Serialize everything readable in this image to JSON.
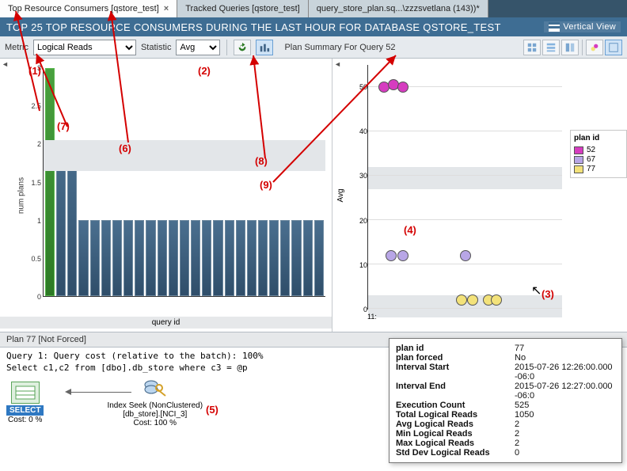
{
  "tabs": [
    {
      "label": "Top Resource Consumers [qstore_test]",
      "active": true
    },
    {
      "label": "Tracked Queries [qstore_test]",
      "active": false
    },
    {
      "label": "query_store_plan.sq...\\zzzsvetlana (143))*",
      "active": false
    }
  ],
  "title": "TOP 25 TOP RESOURCE CONSUMERS DURING THE LAST HOUR FOR DATABASE QSTORE_TEST",
  "vertical_view_label": "Vertical View",
  "toolbar": {
    "metric_label": "Metric",
    "metric_value": "Logical Reads",
    "statistic_label": "Statistic",
    "statistic_value": "Avg",
    "plan_summary_label": "Plan Summary For Query 52"
  },
  "barchart": {
    "ylabel": "num plans",
    "xlabel": "query id",
    "ylim": [
      0,
      3
    ],
    "yticks": [
      0,
      0.5,
      1,
      1.5,
      2,
      2.5,
      3
    ],
    "bands": [
      {
        "from": 1.65,
        "to": 2.05
      }
    ],
    "bars": [
      {
        "v": 3,
        "green": true
      },
      {
        "v": 2
      },
      {
        "v": 2
      },
      {
        "v": 1
      },
      {
        "v": 1
      },
      {
        "v": 1
      },
      {
        "v": 1
      },
      {
        "v": 1
      },
      {
        "v": 1
      },
      {
        "v": 1
      },
      {
        "v": 1
      },
      {
        "v": 1
      },
      {
        "v": 1
      },
      {
        "v": 1
      },
      {
        "v": 1
      },
      {
        "v": 1
      },
      {
        "v": 1
      },
      {
        "v": 1
      },
      {
        "v": 1
      },
      {
        "v": 1
      },
      {
        "v": 1
      },
      {
        "v": 1
      },
      {
        "v": 1
      },
      {
        "v": 1
      },
      {
        "v": 1
      }
    ],
    "bar_blue": "#3f6385",
    "bar_green": "#3f9a34"
  },
  "scatter": {
    "ylabel": "Avg",
    "ylim": [
      0,
      55
    ],
    "yticks": [
      0,
      10,
      20,
      30,
      40,
      50
    ],
    "xlabel_tick": "11:",
    "bands": [
      {
        "from": -2,
        "to": 3
      },
      {
        "from": 27,
        "to": 32
      }
    ],
    "legend_title": "plan id",
    "series": [
      {
        "id": "52",
        "color": "#d63cc0"
      },
      {
        "id": "67",
        "color": "#b8a6e6"
      },
      {
        "id": "77",
        "color": "#f3e27a"
      }
    ],
    "points": [
      {
        "x": 8,
        "y": 50,
        "c": "#d63cc0"
      },
      {
        "x": 13,
        "y": 50.5,
        "c": "#d63cc0"
      },
      {
        "x": 18,
        "y": 50,
        "c": "#d63cc0"
      },
      {
        "x": 12,
        "y": 12,
        "c": "#b8a6e6"
      },
      {
        "x": 18,
        "y": 12,
        "c": "#b8a6e6"
      },
      {
        "x": 50,
        "y": 12,
        "c": "#b8a6e6"
      },
      {
        "x": 48,
        "y": 2,
        "c": "#f3e27a"
      },
      {
        "x": 54,
        "y": 2,
        "c": "#f3e27a"
      },
      {
        "x": 62,
        "y": 2,
        "c": "#f3e27a"
      },
      {
        "x": 66,
        "y": 2,
        "c": "#f3e27a"
      }
    ]
  },
  "plan_header": "Plan 77 [Not Forced]",
  "plan_text": {
    "line1": "Query 1: Query cost (relative to the batch): 100%",
    "line2": "Select c1,c2 from [dbo].db_store where c3 = @p",
    "select_label": "SELECT",
    "select_cost": "Cost: 0 %",
    "seek_l1": "Index Seek (NonClustered)",
    "seek_l2": "[db_store].[NCI_3]",
    "seek_l3": "Cost: 100 %"
  },
  "tooltip": {
    "rows": [
      {
        "k": "plan id",
        "v": "77"
      },
      {
        "k": "plan forced",
        "v": "No"
      },
      {
        "k": "Interval Start",
        "v": "2015-07-26 12:26:00.000 -06:0"
      },
      {
        "k": "Interval End",
        "v": "2015-07-26 12:27:00.000 -06:0"
      },
      {
        "k": "Execution Count",
        "v": "525"
      },
      {
        "k": "Total Logical Reads",
        "v": "1050"
      },
      {
        "k": "Avg Logical Reads",
        "v": "2"
      },
      {
        "k": "Min Logical Reads",
        "v": "2"
      },
      {
        "k": "Max Logical Reads",
        "v": "2"
      },
      {
        "k": "Std Dev Logical Reads",
        "v": "0"
      }
    ]
  },
  "annotations": {
    "1": "(1)",
    "2": "(2)",
    "3": "(3)",
    "4": "(4)",
    "5": "(5)",
    "6": "(6)",
    "7": "(7)",
    "8": "(8)",
    "9": "(9)"
  }
}
